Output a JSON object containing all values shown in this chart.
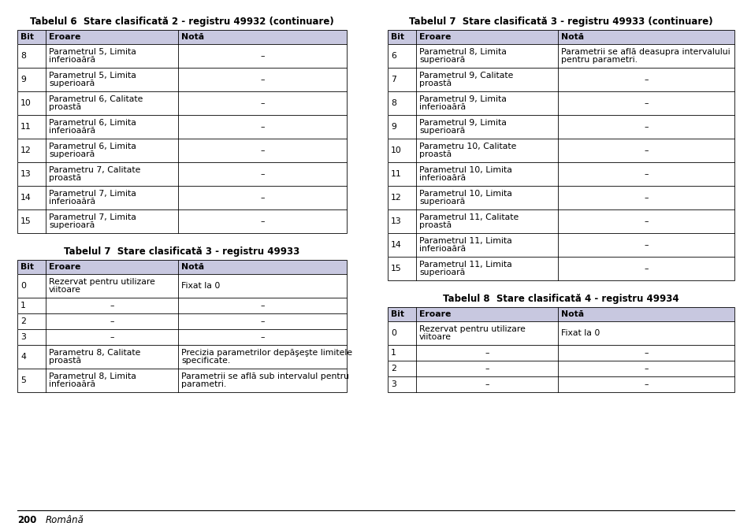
{
  "background_color": "#ffffff",
  "header_bg": "#c8c8e0",
  "table6_title": "Tabelul 6  Stare clasificată 2 - registru 49932 (continuare)",
  "table7_title": "Tabelul 7  Stare clasificată 3 - registru 49933",
  "table7c_title": "Tabelul 7  Stare clasificată 3 - registru 49933 (continuare)",
  "table8_title": "Tabelul 8  Stare clasificată 4 - registru 49934",
  "col_headers": [
    "Bit",
    "Eroare",
    "Notă"
  ],
  "dash": "–",
  "table6_rows": [
    [
      "8",
      "Parametrul 5, Limita\ninferioaără",
      "–"
    ],
    [
      "9",
      "Parametrul 5, Limita\nsuperioară",
      "–"
    ],
    [
      "10",
      "Parametrul 6, Calitate\nproastă",
      "–"
    ],
    [
      "11",
      "Parametrul 6, Limita\ninferioaără",
      "–"
    ],
    [
      "12",
      "Parametrul 6, Limita\nsuperioară",
      "–"
    ],
    [
      "13",
      "Parametru 7, Calitate\nproastă",
      "–"
    ],
    [
      "14",
      "Parametrul 7, Limita\ninferioaără",
      "–"
    ],
    [
      "15",
      "Parametrul 7, Limita\nsuperioară",
      "–"
    ]
  ],
  "table7_rows": [
    [
      "0",
      "Rezervat pentru utilizare\nviitoare",
      "Fixat la 0"
    ],
    [
      "1",
      "–",
      "–"
    ],
    [
      "2",
      "–",
      "–"
    ],
    [
      "3",
      "–",
      "–"
    ],
    [
      "4",
      "Parametru 8, Calitate\nproastă",
      "Precizia parametrilor depăşeşte limitele\nspecificate."
    ],
    [
      "5",
      "Parametrul 8, Limita\ninferioaără",
      "Parametrii se află sub intervalul pentru\nparametri."
    ]
  ],
  "table7c_rows": [
    [
      "6",
      "Parametrul 8, Limita\nsuperioară",
      "Parametrii se află deasupra intervalului\npentru parametri."
    ],
    [
      "7",
      "Parametrul 9, Calitate\nproastă",
      "–"
    ],
    [
      "8",
      "Parametrul 9, Limita\ninferioaără",
      "–"
    ],
    [
      "9",
      "Parametrul 9, Limita\nsuperioară",
      "–"
    ],
    [
      "10",
      "Parametru 10, Calitate\nproastă",
      "–"
    ],
    [
      "11",
      "Parametrul 10, Limita\ninferioaără",
      "–"
    ],
    [
      "12",
      "Parametrul 10, Limita\nsuperioară",
      "–"
    ],
    [
      "13",
      "Parametrul 11, Calitate\nproastă",
      "–"
    ],
    [
      "14",
      "Parametrul 11, Limita\ninferioaără",
      "–"
    ],
    [
      "15",
      "Parametrul 11, Limita\nsuperioară",
      "–"
    ]
  ],
  "table8_rows": [
    [
      "0",
      "Rezervat pentru utilizare\nviitoare",
      "Fixat la 0"
    ],
    [
      "1",
      "–",
      "–"
    ],
    [
      "2",
      "–",
      "–"
    ],
    [
      "3",
      "–",
      "–"
    ]
  ],
  "footer_text": "200",
  "footer_italic": "Română"
}
